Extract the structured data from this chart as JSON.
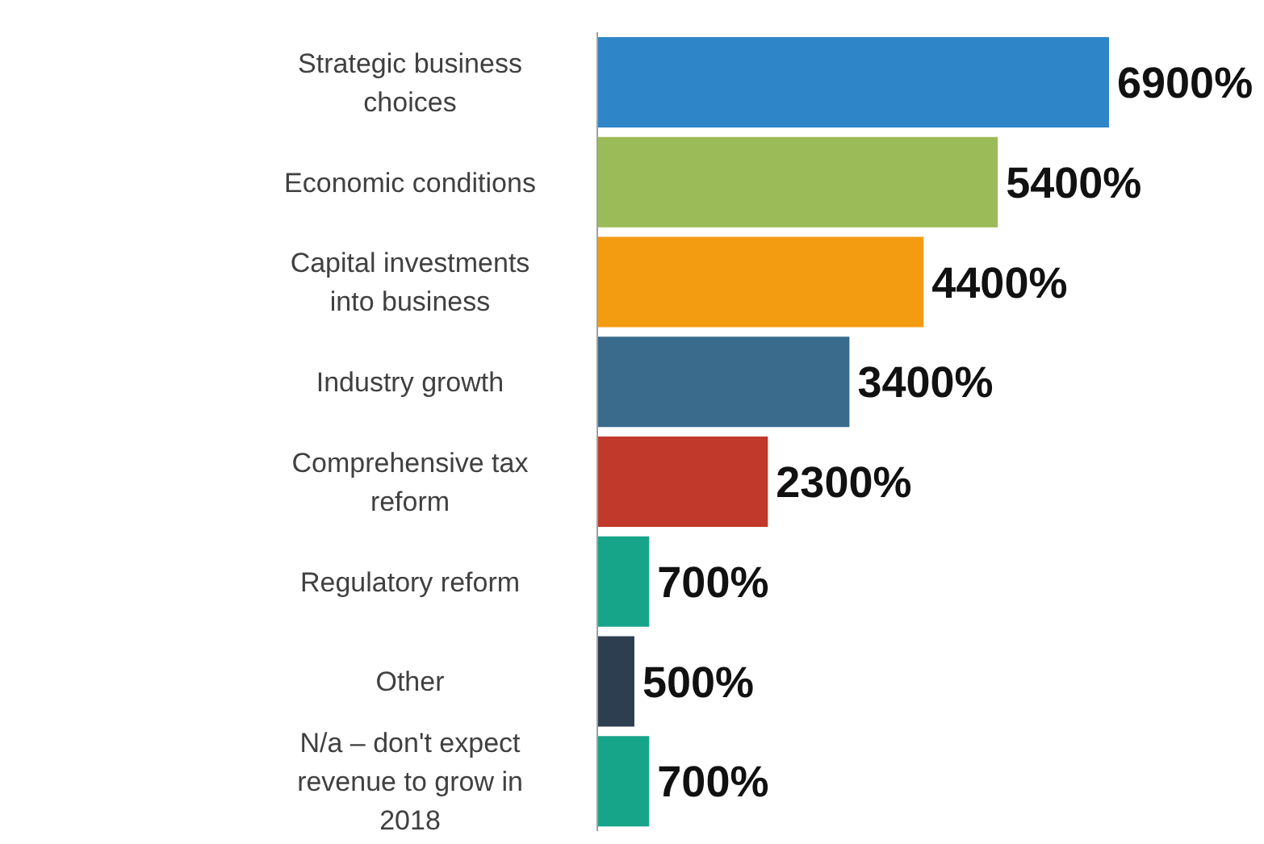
{
  "chart_data": {
    "type": "bar",
    "orientation": "horizontal",
    "categories": [
      "Strategic business choices",
      "Economic conditions",
      "Capital investments into business",
      "Industry growth",
      "Comprehensive tax reform",
      "Regulatory reform",
      "Other",
      "N/a – don't expect revenue to grow in 2018"
    ],
    "values": [
      6900,
      5400,
      4400,
      3400,
      2300,
      700,
      500,
      700
    ],
    "value_labels": [
      "6900%",
      "5400%",
      "4400%",
      "3400%",
      "2300%",
      "700%",
      "500%",
      "700%"
    ],
    "colors": [
      "#2e86c8",
      "#9bbb59",
      "#f39c12",
      "#3a6b8c",
      "#c0392b",
      "#17a589",
      "#2c3e50",
      "#17a589"
    ],
    "grid": false,
    "legend": false
  }
}
